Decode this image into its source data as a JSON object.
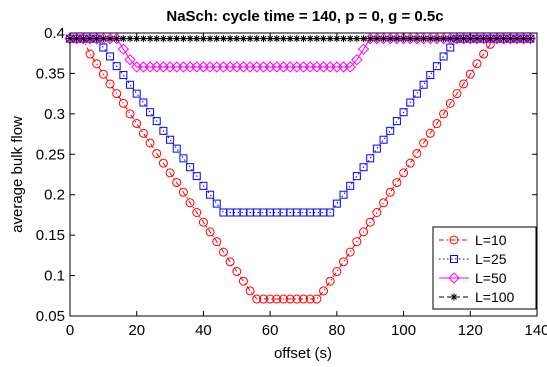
{
  "chart_data": {
    "type": "line",
    "title": "NaSch: cycle time = 140, p = 0, g = 0.5c",
    "xlabel": "offset (s)",
    "ylabel": "average bulk flow",
    "xlim": [
      0,
      140
    ],
    "ylim": [
      0.05,
      0.4
    ],
    "xticks": [
      0,
      20,
      40,
      60,
      80,
      100,
      120,
      140
    ],
    "yticks": [
      0.05,
      0.1,
      0.15,
      0.2,
      0.25,
      0.3,
      0.35,
      0.4
    ],
    "xtick_labels": [
      "0",
      "20",
      "40",
      "60",
      "80",
      "100",
      "120",
      "140"
    ],
    "ytick_labels": [
      "0.05",
      "0.1",
      "0.15",
      "0.2",
      "0.25",
      "0.3",
      "0.35",
      "0.4"
    ],
    "grid": false,
    "legend_position": "bottom-right",
    "x": [
      0,
      2,
      4,
      6,
      8,
      10,
      12,
      14,
      16,
      18,
      20,
      22,
      24,
      26,
      28,
      30,
      32,
      34,
      36,
      38,
      40,
      42,
      44,
      46,
      48,
      50,
      52,
      54,
      56,
      58,
      60,
      62,
      64,
      66,
      68,
      70,
      72,
      74,
      76,
      78,
      80,
      82,
      84,
      86,
      88,
      90,
      92,
      94,
      96,
      98,
      100,
      102,
      104,
      106,
      108,
      110,
      112,
      114,
      116,
      118,
      120,
      122,
      124,
      126,
      128,
      130,
      132,
      134,
      136,
      138
    ],
    "series": [
      {
        "name": "L=10",
        "color": "#ff0000",
        "marker": "circle",
        "line_style": "dashdot",
        "values": [
          0.393,
          0.393,
          0.393,
          0.374,
          0.362,
          0.349,
          0.337,
          0.325,
          0.313,
          0.3,
          0.288,
          0.276,
          0.264,
          0.251,
          0.239,
          0.227,
          0.215,
          0.203,
          0.19,
          0.178,
          0.166,
          0.154,
          0.142,
          0.129,
          0.117,
          0.105,
          0.093,
          0.081,
          0.071,
          0.071,
          0.071,
          0.071,
          0.071,
          0.071,
          0.071,
          0.071,
          0.071,
          0.071,
          0.081,
          0.093,
          0.105,
          0.117,
          0.129,
          0.142,
          0.154,
          0.166,
          0.178,
          0.19,
          0.203,
          0.215,
          0.227,
          0.239,
          0.251,
          0.264,
          0.276,
          0.288,
          0.3,
          0.313,
          0.325,
          0.337,
          0.349,
          0.362,
          0.374,
          0.386,
          0.393,
          0.393,
          0.393,
          0.393,
          0.393,
          0.393
        ]
      },
      {
        "name": "L=25",
        "color": "#0000ff",
        "marker": "square",
        "line_style": "dotted",
        "values": [
          0.393,
          0.393,
          0.393,
          0.393,
          0.393,
          0.382,
          0.371,
          0.359,
          0.348,
          0.336,
          0.325,
          0.314,
          0.302,
          0.291,
          0.279,
          0.268,
          0.257,
          0.245,
          0.234,
          0.223,
          0.211,
          0.2,
          0.189,
          0.178,
          0.178,
          0.178,
          0.178,
          0.178,
          0.178,
          0.178,
          0.178,
          0.178,
          0.178,
          0.178,
          0.178,
          0.178,
          0.178,
          0.178,
          0.178,
          0.178,
          0.189,
          0.2,
          0.211,
          0.223,
          0.234,
          0.245,
          0.257,
          0.268,
          0.279,
          0.291,
          0.302,
          0.314,
          0.325,
          0.336,
          0.348,
          0.359,
          0.371,
          0.382,
          0.393,
          0.393,
          0.393,
          0.393,
          0.393,
          0.393,
          0.393,
          0.393,
          0.393,
          0.393,
          0.393,
          0.393
        ]
      },
      {
        "name": "L=50",
        "color": "#ff00ff",
        "marker": "diamond",
        "line_style": "solid",
        "values": [
          0.393,
          0.393,
          0.393,
          0.393,
          0.393,
          0.393,
          0.393,
          0.393,
          0.38,
          0.367,
          0.358,
          0.358,
          0.358,
          0.358,
          0.358,
          0.358,
          0.358,
          0.358,
          0.358,
          0.358,
          0.358,
          0.358,
          0.358,
          0.358,
          0.358,
          0.358,
          0.358,
          0.358,
          0.358,
          0.358,
          0.358,
          0.358,
          0.358,
          0.358,
          0.358,
          0.358,
          0.358,
          0.358,
          0.358,
          0.358,
          0.358,
          0.358,
          0.358,
          0.367,
          0.38,
          0.393,
          0.393,
          0.393,
          0.393,
          0.393,
          0.393,
          0.393,
          0.393,
          0.393,
          0.393,
          0.393,
          0.393,
          0.393,
          0.393,
          0.393,
          0.393,
          0.393,
          0.393,
          0.393,
          0.393,
          0.393,
          0.393,
          0.393,
          0.393,
          0.393
        ]
      },
      {
        "name": "L=100",
        "color": "#000000",
        "marker": "asterisk",
        "line_style": "dashed",
        "values": [
          0.393,
          0.393,
          0.393,
          0.393,
          0.393,
          0.393,
          0.393,
          0.393,
          0.393,
          0.393,
          0.393,
          0.393,
          0.393,
          0.393,
          0.393,
          0.393,
          0.393,
          0.393,
          0.393,
          0.393,
          0.393,
          0.393,
          0.393,
          0.393,
          0.393,
          0.393,
          0.393,
          0.393,
          0.393,
          0.393,
          0.393,
          0.393,
          0.393,
          0.393,
          0.393,
          0.393,
          0.393,
          0.393,
          0.393,
          0.393,
          0.393,
          0.393,
          0.393,
          0.393,
          0.393,
          0.393,
          0.393,
          0.393,
          0.393,
          0.393,
          0.393,
          0.393,
          0.393,
          0.393,
          0.393,
          0.393,
          0.393,
          0.393,
          0.393,
          0.393,
          0.393,
          0.393,
          0.393,
          0.393,
          0.393,
          0.393,
          0.393,
          0.393,
          0.393,
          0.393
        ]
      }
    ]
  }
}
